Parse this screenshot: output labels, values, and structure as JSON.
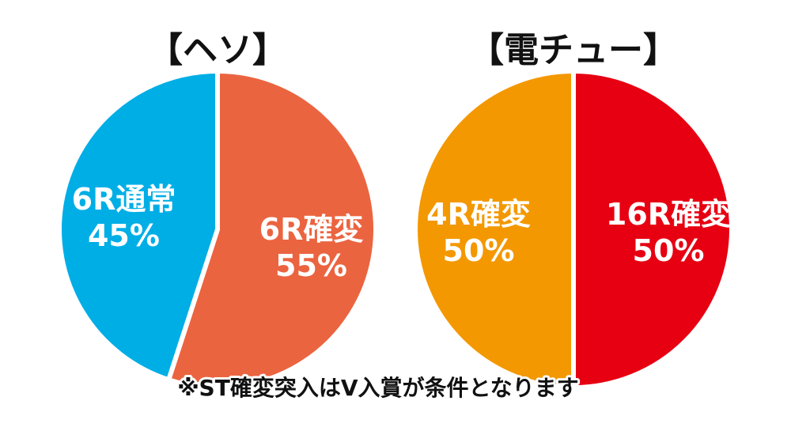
{
  "chart_data": [
    {
      "type": "pie",
      "title": "【ヘソ】",
      "slices": [
        {
          "label": "6R確変",
          "value": 55,
          "value_label": "55%",
          "color": "#eb6440"
        },
        {
          "label": "6R通常",
          "value": 45,
          "value_label": "45%",
          "color": "#00aee6"
        }
      ]
    },
    {
      "type": "pie",
      "title": "【電チュー】",
      "slices": [
        {
          "label": "16R確変",
          "value": 50,
          "value_label": "50%",
          "color": "#e60012"
        },
        {
          "label": "4R確変",
          "value": 50,
          "value_label": "50%",
          "color": "#f39800"
        }
      ]
    }
  ],
  "footnote": "※ST確変突入はV入賞が条件となります"
}
